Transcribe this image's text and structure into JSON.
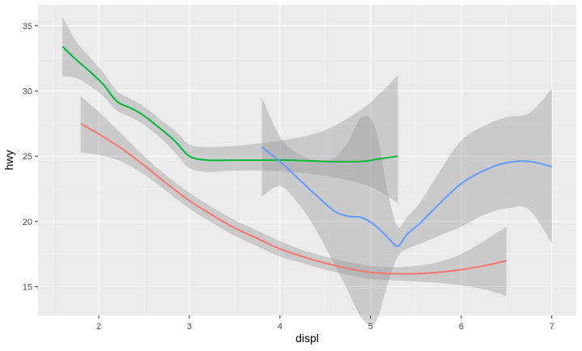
{
  "chart_data": {
    "type": "line",
    "title": "",
    "xlabel": "displ",
    "ylabel": "hwy",
    "xlim": [
      1.33,
      7.27
    ],
    "ylim": [
      12.8,
      36.6
    ],
    "x_ticks": [
      2,
      3,
      4,
      5,
      6,
      7
    ],
    "y_ticks": [
      15,
      20,
      25,
      30,
      35
    ],
    "grid": true,
    "legend": "none",
    "colors": {
      "panel_background": "#ebebeb",
      "grid_major": "#ffffff",
      "grid_minor": "#f4f4f4",
      "ribbon": "#999999"
    },
    "series": [
      {
        "color": "#f8766d",
        "x": [
          1.8,
          2.0,
          2.25,
          2.5,
          2.75,
          3.0,
          3.25,
          3.5,
          3.75,
          4.0,
          4.25,
          4.5,
          4.75,
          5.0,
          5.25,
          5.5,
          5.75,
          6.0,
          6.25,
          6.5
        ],
        "y": [
          27.5,
          26.7,
          25.6,
          24.3,
          22.9,
          21.6,
          20.5,
          19.5,
          18.7,
          17.9,
          17.3,
          16.8,
          16.4,
          16.1,
          16.0,
          16.0,
          16.1,
          16.3,
          16.6,
          17.0
        ],
        "lower": [
          25.3,
          25.1,
          24.6,
          23.6,
          22.3,
          21.0,
          19.9,
          18.9,
          18.1,
          17.3,
          16.8,
          16.3,
          15.9,
          15.6,
          15.5,
          15.4,
          15.3,
          15.1,
          14.8,
          14.3
        ],
        "upper": [
          29.6,
          28.4,
          26.7,
          25.0,
          23.5,
          22.2,
          21.1,
          20.1,
          19.3,
          18.5,
          17.8,
          17.3,
          16.9,
          16.6,
          16.5,
          16.6,
          16.9,
          17.5,
          18.5,
          19.6
        ]
      },
      {
        "color": "#00ba38",
        "x": [
          1.6,
          1.75,
          1.9,
          2.05,
          2.2,
          2.35,
          2.5,
          2.7,
          2.85,
          3.0,
          3.2,
          3.5,
          3.8,
          4.1,
          4.5,
          4.9,
          5.1,
          5.3
        ],
        "y": [
          33.4,
          32.4,
          31.5,
          30.5,
          29.2,
          28.7,
          28.1,
          27.0,
          26.1,
          25.0,
          24.7,
          24.7,
          24.7,
          24.7,
          24.6,
          24.6,
          24.8,
          25.0
        ],
        "lower": [
          31.1,
          31.0,
          30.4,
          29.6,
          28.5,
          28.0,
          27.4,
          26.3,
          25.2,
          24.1,
          23.8,
          23.9,
          23.9,
          23.8,
          23.5,
          22.9,
          22.3,
          21.4
        ],
        "upper": [
          35.7,
          33.8,
          32.6,
          31.4,
          30.0,
          29.4,
          28.8,
          27.7,
          26.9,
          25.9,
          25.7,
          25.8,
          26.0,
          26.3,
          27.0,
          28.6,
          29.8,
          31.2
        ]
      },
      {
        "color": "#619cff",
        "x": [
          3.8,
          4.0,
          4.2,
          4.4,
          4.6,
          4.75,
          4.9,
          5.05,
          5.2,
          5.3,
          5.4,
          5.55,
          5.75,
          6.0,
          6.25,
          6.5,
          6.75,
          7.0
        ],
        "y": [
          25.7,
          24.6,
          23.3,
          22.0,
          20.8,
          20.4,
          20.3,
          19.7,
          18.7,
          18.1,
          19.0,
          19.9,
          21.3,
          22.9,
          23.9,
          24.5,
          24.6,
          24.2
        ],
        "lower": [
          21.9,
          22.7,
          21.4,
          19.3,
          16.7,
          14.7,
          12.6,
          12.2,
          15.5,
          17.3,
          17.9,
          18.3,
          18.9,
          19.6,
          20.5,
          21.0,
          20.9,
          18.3
        ],
        "upper": [
          29.5,
          26.5,
          25.2,
          24.7,
          24.9,
          26.1,
          28.0,
          27.2,
          21.9,
          19.6,
          20.3,
          21.5,
          23.7,
          26.2,
          27.3,
          28.0,
          28.3,
          30.2
        ]
      }
    ]
  }
}
